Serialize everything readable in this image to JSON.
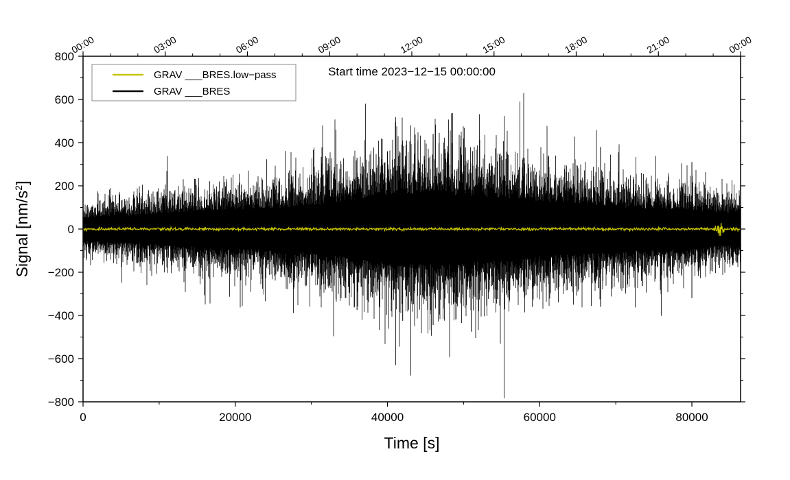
{
  "chart_data": {
    "type": "line",
    "title": "",
    "annotation": "Start time 2023−12−15 00:00:00",
    "xlabel": "Time [s]",
    "ylabel_main": "Signal [nm/s",
    "ylabel_sup": "2",
    "ylabel_close": "]",
    "xlim": [
      0,
      86400
    ],
    "ylim": [
      -800,
      800
    ],
    "x_ticks": [
      0,
      20000,
      40000,
      60000,
      80000
    ],
    "x_tick_labels": [
      "0",
      "20000",
      "40000",
      "60000",
      "80000"
    ],
    "x_minor_step": 10000,
    "y_ticks": [
      -800,
      -600,
      -400,
      -200,
      0,
      200,
      400,
      600,
      800
    ],
    "y_tick_labels": [
      "−800",
      "−600",
      "−400",
      "−200",
      "0",
      "200",
      "400",
      "600",
      "800"
    ],
    "y_minor_step": 100,
    "top_axis": {
      "label_positions_s": [
        0,
        10800,
        21600,
        32400,
        43200,
        54000,
        64800,
        75600,
        86400
      ],
      "labels": [
        "00:00",
        "03:00",
        "06:00",
        "09:00",
        "12:00",
        "15:00",
        "18:00",
        "21:00",
        "00:00"
      ],
      "minor_step_s": 3600
    },
    "legend": {
      "placement": "top-left",
      "entries": [
        {
          "label": "GRAV ___BRES.low−pass",
          "color": "#c8c400"
        },
        {
          "label": "GRAV ___BRES",
          "color": "#000000"
        }
      ]
    },
    "series": [
      {
        "name": "GRAV ___BRES",
        "color": "#000000",
        "kind": "envelope",
        "envelope_x_s": [
          0,
          5000,
          10000,
          15000,
          20000,
          25000,
          30000,
          35000,
          40000,
          42000,
          46000,
          50000,
          55000,
          60000,
          65000,
          70000,
          75000,
          80000,
          83000,
          86400
        ],
        "envelope_amplitude": [
          95,
          110,
          130,
          150,
          165,
          175,
          200,
          240,
          280,
          290,
          300,
          280,
          260,
          230,
          210,
          185,
          170,
          160,
          140,
          130
        ],
        "peak_events": [
          {
            "x": 32000,
            "y": 330
          },
          {
            "x": 36000,
            "y": 330
          },
          {
            "x": 40000,
            "y": 360
          },
          {
            "x": 42500,
            "y": 410
          },
          {
            "x": 44000,
            "y": 410
          },
          {
            "x": 46000,
            "y": 440
          },
          {
            "x": 48000,
            "y": 350
          },
          {
            "x": 50000,
            "y": 420
          },
          {
            "x": 51000,
            "y": -475
          },
          {
            "x": 42000,
            "y": -425
          },
          {
            "x": 46000,
            "y": -445
          },
          {
            "x": 36000,
            "y": -375
          },
          {
            "x": 55000,
            "y": 340
          },
          {
            "x": 68000,
            "y": 380
          },
          {
            "x": 68000,
            "y": -360
          },
          {
            "x": 80000,
            "y": 310
          },
          {
            "x": 80000,
            "y": -320
          }
        ]
      },
      {
        "name": "GRAV ___BRES.low−pass",
        "color": "#c8c400",
        "kind": "near-zero",
        "typical_amplitude": 4,
        "burst": {
          "x": 83600,
          "amplitude": 28
        }
      }
    ]
  }
}
